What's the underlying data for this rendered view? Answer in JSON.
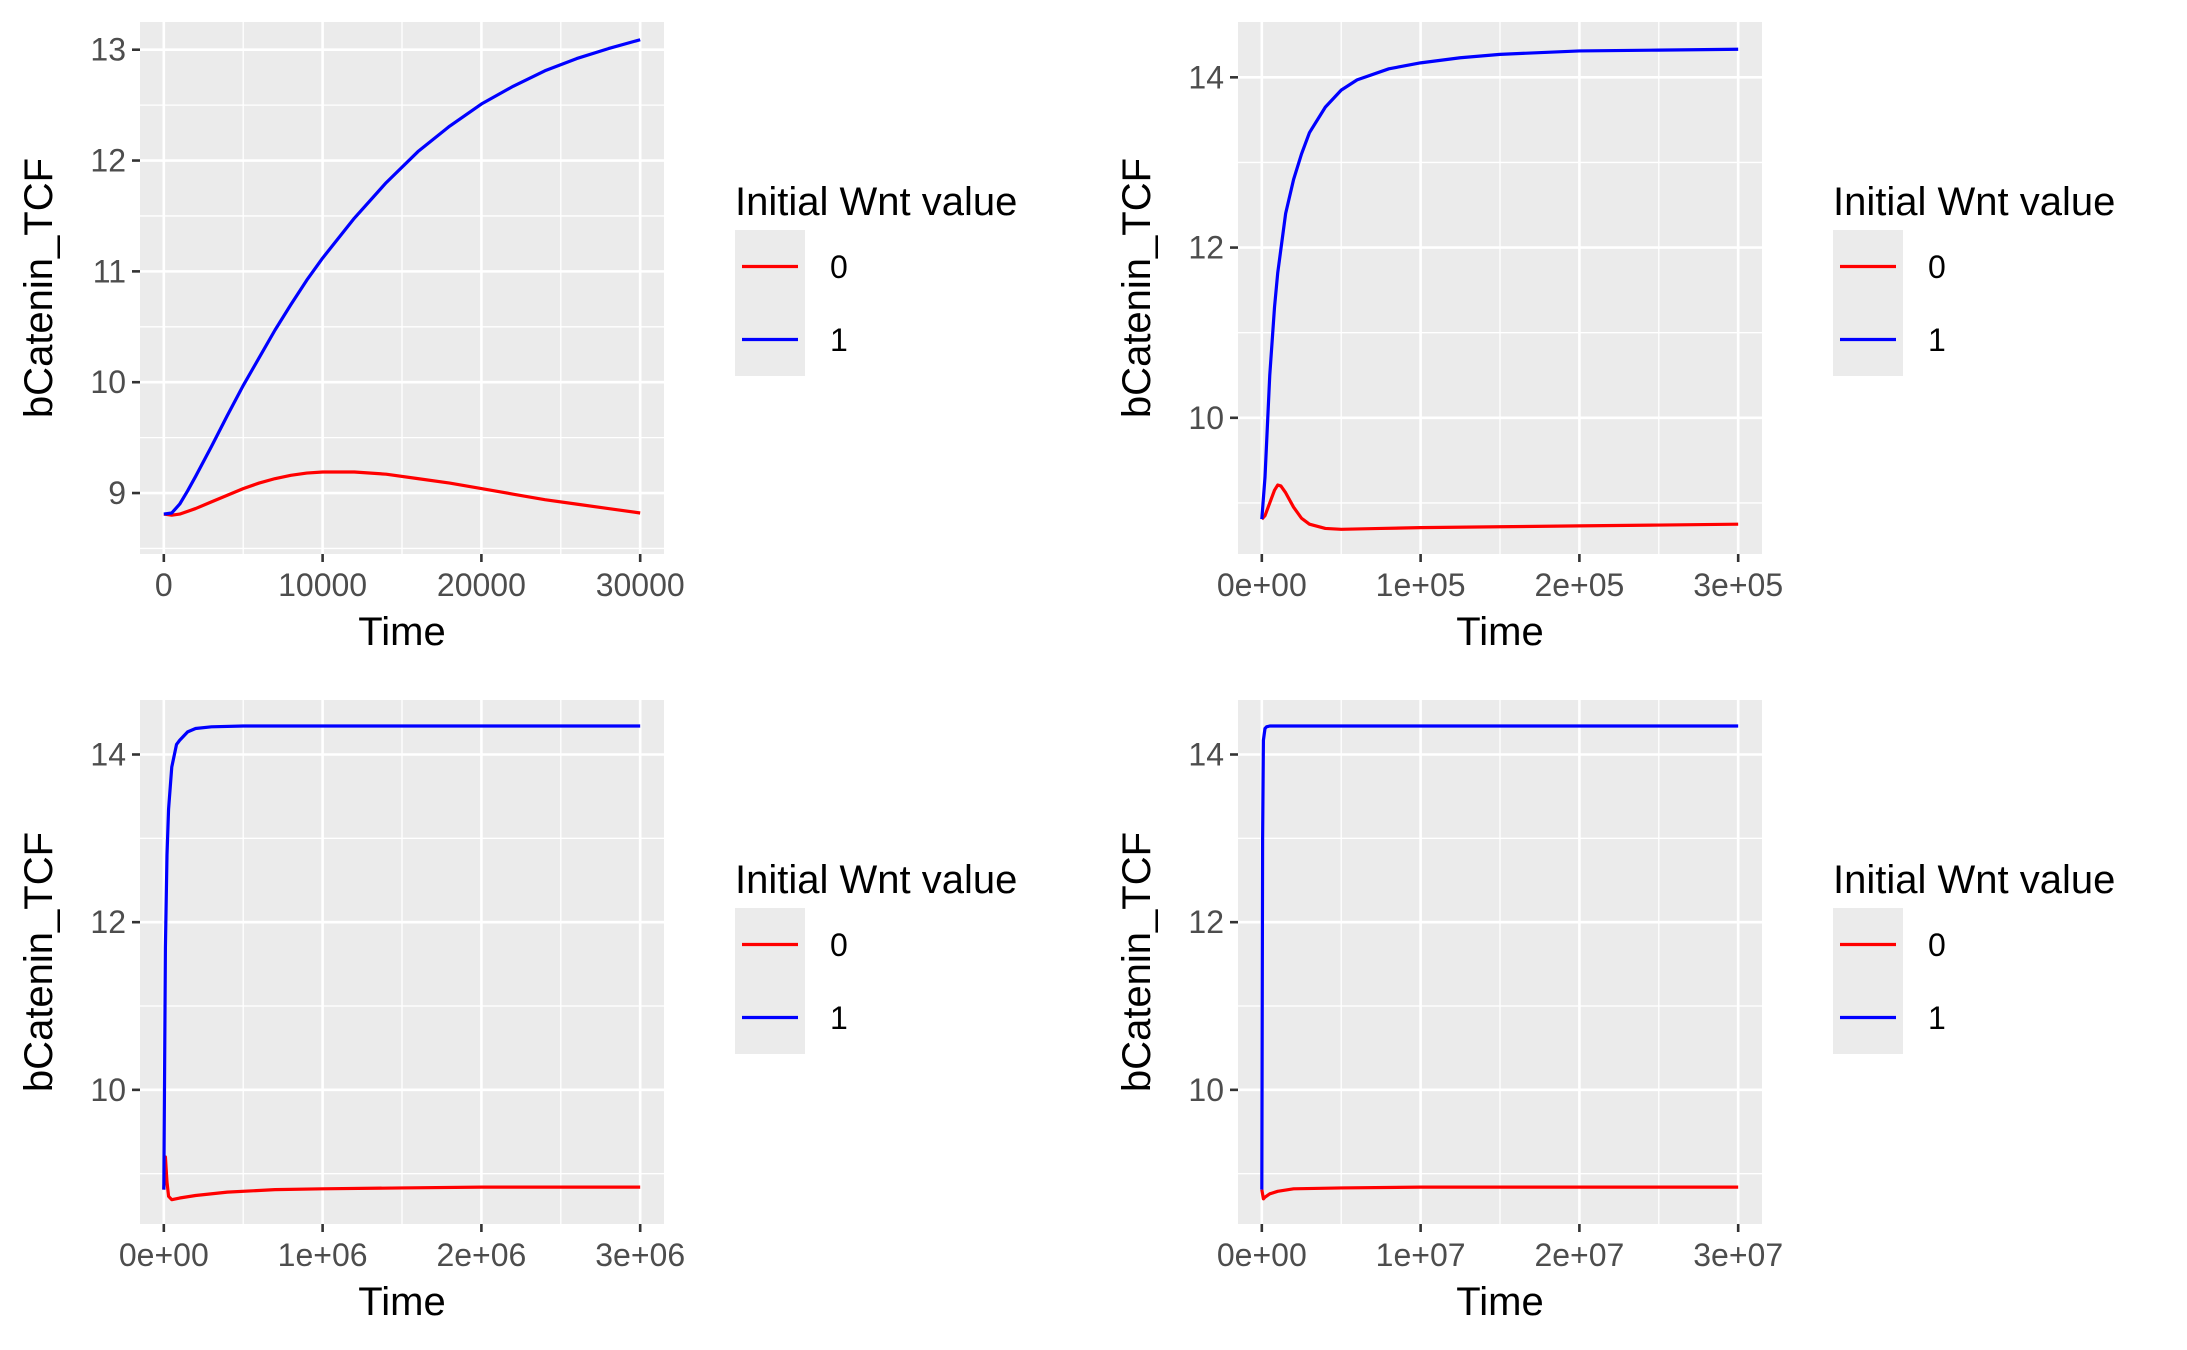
{
  "chart_data": [
    {
      "type": "line",
      "xlabel": "Time",
      "ylabel": "bCatenin_TCF",
      "xlim": [
        -1500,
        31500
      ],
      "ylim": [
        8.45,
        13.25
      ],
      "x_ticks": [
        0,
        10000,
        20000,
        30000
      ],
      "x_tick_labels": [
        "0",
        "10000",
        "20000",
        "30000"
      ],
      "y_ticks": [
        9,
        10,
        11,
        12,
        13
      ],
      "y_tick_labels": [
        "9",
        "10",
        "11",
        "12",
        "13"
      ],
      "grid": true,
      "legend": {
        "title": "Initial Wnt value",
        "position": "right"
      },
      "series": [
        {
          "name": "0",
          "color": "#ff0000",
          "x": [
            0,
            500,
            1000,
            2000,
            3000,
            4000,
            5000,
            6000,
            7000,
            8000,
            9000,
            10000,
            11000,
            12000,
            14000,
            16000,
            18000,
            20000,
            22000,
            24000,
            26000,
            28000,
            30000
          ],
          "y": [
            8.81,
            8.8,
            8.81,
            8.86,
            8.92,
            8.98,
            9.04,
            9.09,
            9.13,
            9.16,
            9.18,
            9.19,
            9.19,
            9.19,
            9.17,
            9.13,
            9.09,
            9.04,
            8.99,
            8.94,
            8.9,
            8.86,
            8.82
          ]
        },
        {
          "name": "1",
          "color": "#0000ff",
          "x": [
            0,
            500,
            1000,
            1500,
            2000,
            3000,
            4000,
            5000,
            6000,
            7000,
            8000,
            9000,
            10000,
            12000,
            14000,
            16000,
            18000,
            20000,
            22000,
            24000,
            26000,
            28000,
            30000
          ],
          "y": [
            8.81,
            8.82,
            8.9,
            9.02,
            9.15,
            9.42,
            9.7,
            9.97,
            10.22,
            10.47,
            10.7,
            10.92,
            11.12,
            11.48,
            11.8,
            12.08,
            12.31,
            12.51,
            12.67,
            12.81,
            12.92,
            13.01,
            13.09
          ]
        }
      ]
    },
    {
      "type": "line",
      "xlabel": "Time",
      "ylabel": "bCatenin_TCF",
      "xlim": [
        -15000,
        315000
      ],
      "ylim": [
        8.4,
        14.65
      ],
      "x_ticks": [
        0,
        100000,
        200000,
        300000
      ],
      "x_tick_labels": [
        "0e+00",
        "1e+05",
        "2e+05",
        "3e+05"
      ],
      "y_ticks": [
        10,
        12,
        14
      ],
      "y_tick_labels": [
        "10",
        "12",
        "14"
      ],
      "grid": true,
      "legend": {
        "title": "Initial Wnt value",
        "position": "right"
      },
      "series": [
        {
          "name": "0",
          "color": "#ff0000",
          "x": [
            0,
            2000,
            5000,
            8000,
            10000,
            12000,
            15000,
            20000,
            25000,
            30000,
            40000,
            50000,
            75000,
            100000,
            150000,
            200000,
            250000,
            300000
          ],
          "y": [
            8.81,
            8.85,
            9.0,
            9.15,
            9.21,
            9.2,
            9.12,
            8.95,
            8.82,
            8.75,
            8.7,
            8.69,
            8.7,
            8.71,
            8.72,
            8.73,
            8.74,
            8.75
          ]
        },
        {
          "name": "1",
          "color": "#0000ff",
          "x": [
            0,
            2000,
            5000,
            8000,
            10000,
            15000,
            20000,
            25000,
            30000,
            40000,
            50000,
            60000,
            80000,
            100000,
            125000,
            150000,
            200000,
            250000,
            300000
          ],
          "y": [
            8.81,
            9.3,
            10.5,
            11.3,
            11.7,
            12.4,
            12.8,
            13.1,
            13.35,
            13.65,
            13.85,
            13.97,
            14.1,
            14.17,
            14.23,
            14.27,
            14.31,
            14.32,
            14.33
          ]
        }
      ]
    },
    {
      "type": "line",
      "xlabel": "Time",
      "ylabel": "bCatenin_TCF",
      "xlim": [
        -150000,
        3150000
      ],
      "ylim": [
        8.4,
        14.65
      ],
      "x_ticks": [
        0,
        1000000,
        2000000,
        3000000
      ],
      "x_tick_labels": [
        "0e+00",
        "1e+06",
        "2e+06",
        "3e+06"
      ],
      "y_ticks": [
        10,
        12,
        14
      ],
      "y_tick_labels": [
        "10",
        "12",
        "14"
      ],
      "grid": true,
      "legend": {
        "title": "Initial Wnt value",
        "position": "right"
      },
      "series": [
        {
          "name": "0",
          "color": "#ff0000",
          "x": [
            0,
            10000,
            20000,
            30000,
            50000,
            100000,
            200000,
            400000,
            700000,
            1000000,
            1500000,
            2000000,
            2500000,
            3000000
          ],
          "y": [
            8.81,
            9.2,
            8.9,
            8.73,
            8.69,
            8.71,
            8.74,
            8.78,
            8.81,
            8.82,
            8.83,
            8.84,
            8.84,
            8.84
          ]
        },
        {
          "name": "1",
          "color": "#0000ff",
          "x": [
            0,
            10000,
            20000,
            30000,
            50000,
            80000,
            100000,
            150000,
            200000,
            300000,
            500000,
            1000000,
            2000000,
            3000000
          ],
          "y": [
            8.81,
            11.7,
            12.8,
            13.35,
            13.85,
            14.12,
            14.17,
            14.27,
            14.31,
            14.33,
            14.34,
            14.34,
            14.34,
            14.34
          ]
        }
      ]
    },
    {
      "type": "line",
      "xlabel": "Time",
      "ylabel": "bCatenin_TCF",
      "xlim": [
        -1500000,
        31500000
      ],
      "ylim": [
        8.4,
        14.65
      ],
      "x_ticks": [
        0,
        10000000,
        20000000,
        30000000
      ],
      "x_tick_labels": [
        "0e+00",
        "1e+07",
        "2e+07",
        "3e+07"
      ],
      "y_ticks": [
        10,
        12,
        14
      ],
      "y_tick_labels": [
        "10",
        "12",
        "14"
      ],
      "grid": true,
      "legend": {
        "title": "Initial Wnt value",
        "position": "right"
      },
      "series": [
        {
          "name": "0",
          "color": "#ff0000",
          "x": [
            0,
            100000,
            200000,
            500000,
            1000000,
            2000000,
            5000000,
            10000000,
            20000000,
            30000000
          ],
          "y": [
            8.81,
            8.7,
            8.72,
            8.76,
            8.79,
            8.82,
            8.83,
            8.84,
            8.84,
            8.84
          ]
        },
        {
          "name": "1",
          "color": "#0000ff",
          "x": [
            0,
            50000,
            100000,
            200000,
            300000,
            500000,
            1000000,
            5000000,
            10000000,
            20000000,
            30000000
          ],
          "y": [
            8.81,
            13.0,
            14.17,
            14.31,
            14.33,
            14.34,
            14.34,
            14.34,
            14.34,
            14.34,
            14.34
          ]
        }
      ]
    }
  ]
}
